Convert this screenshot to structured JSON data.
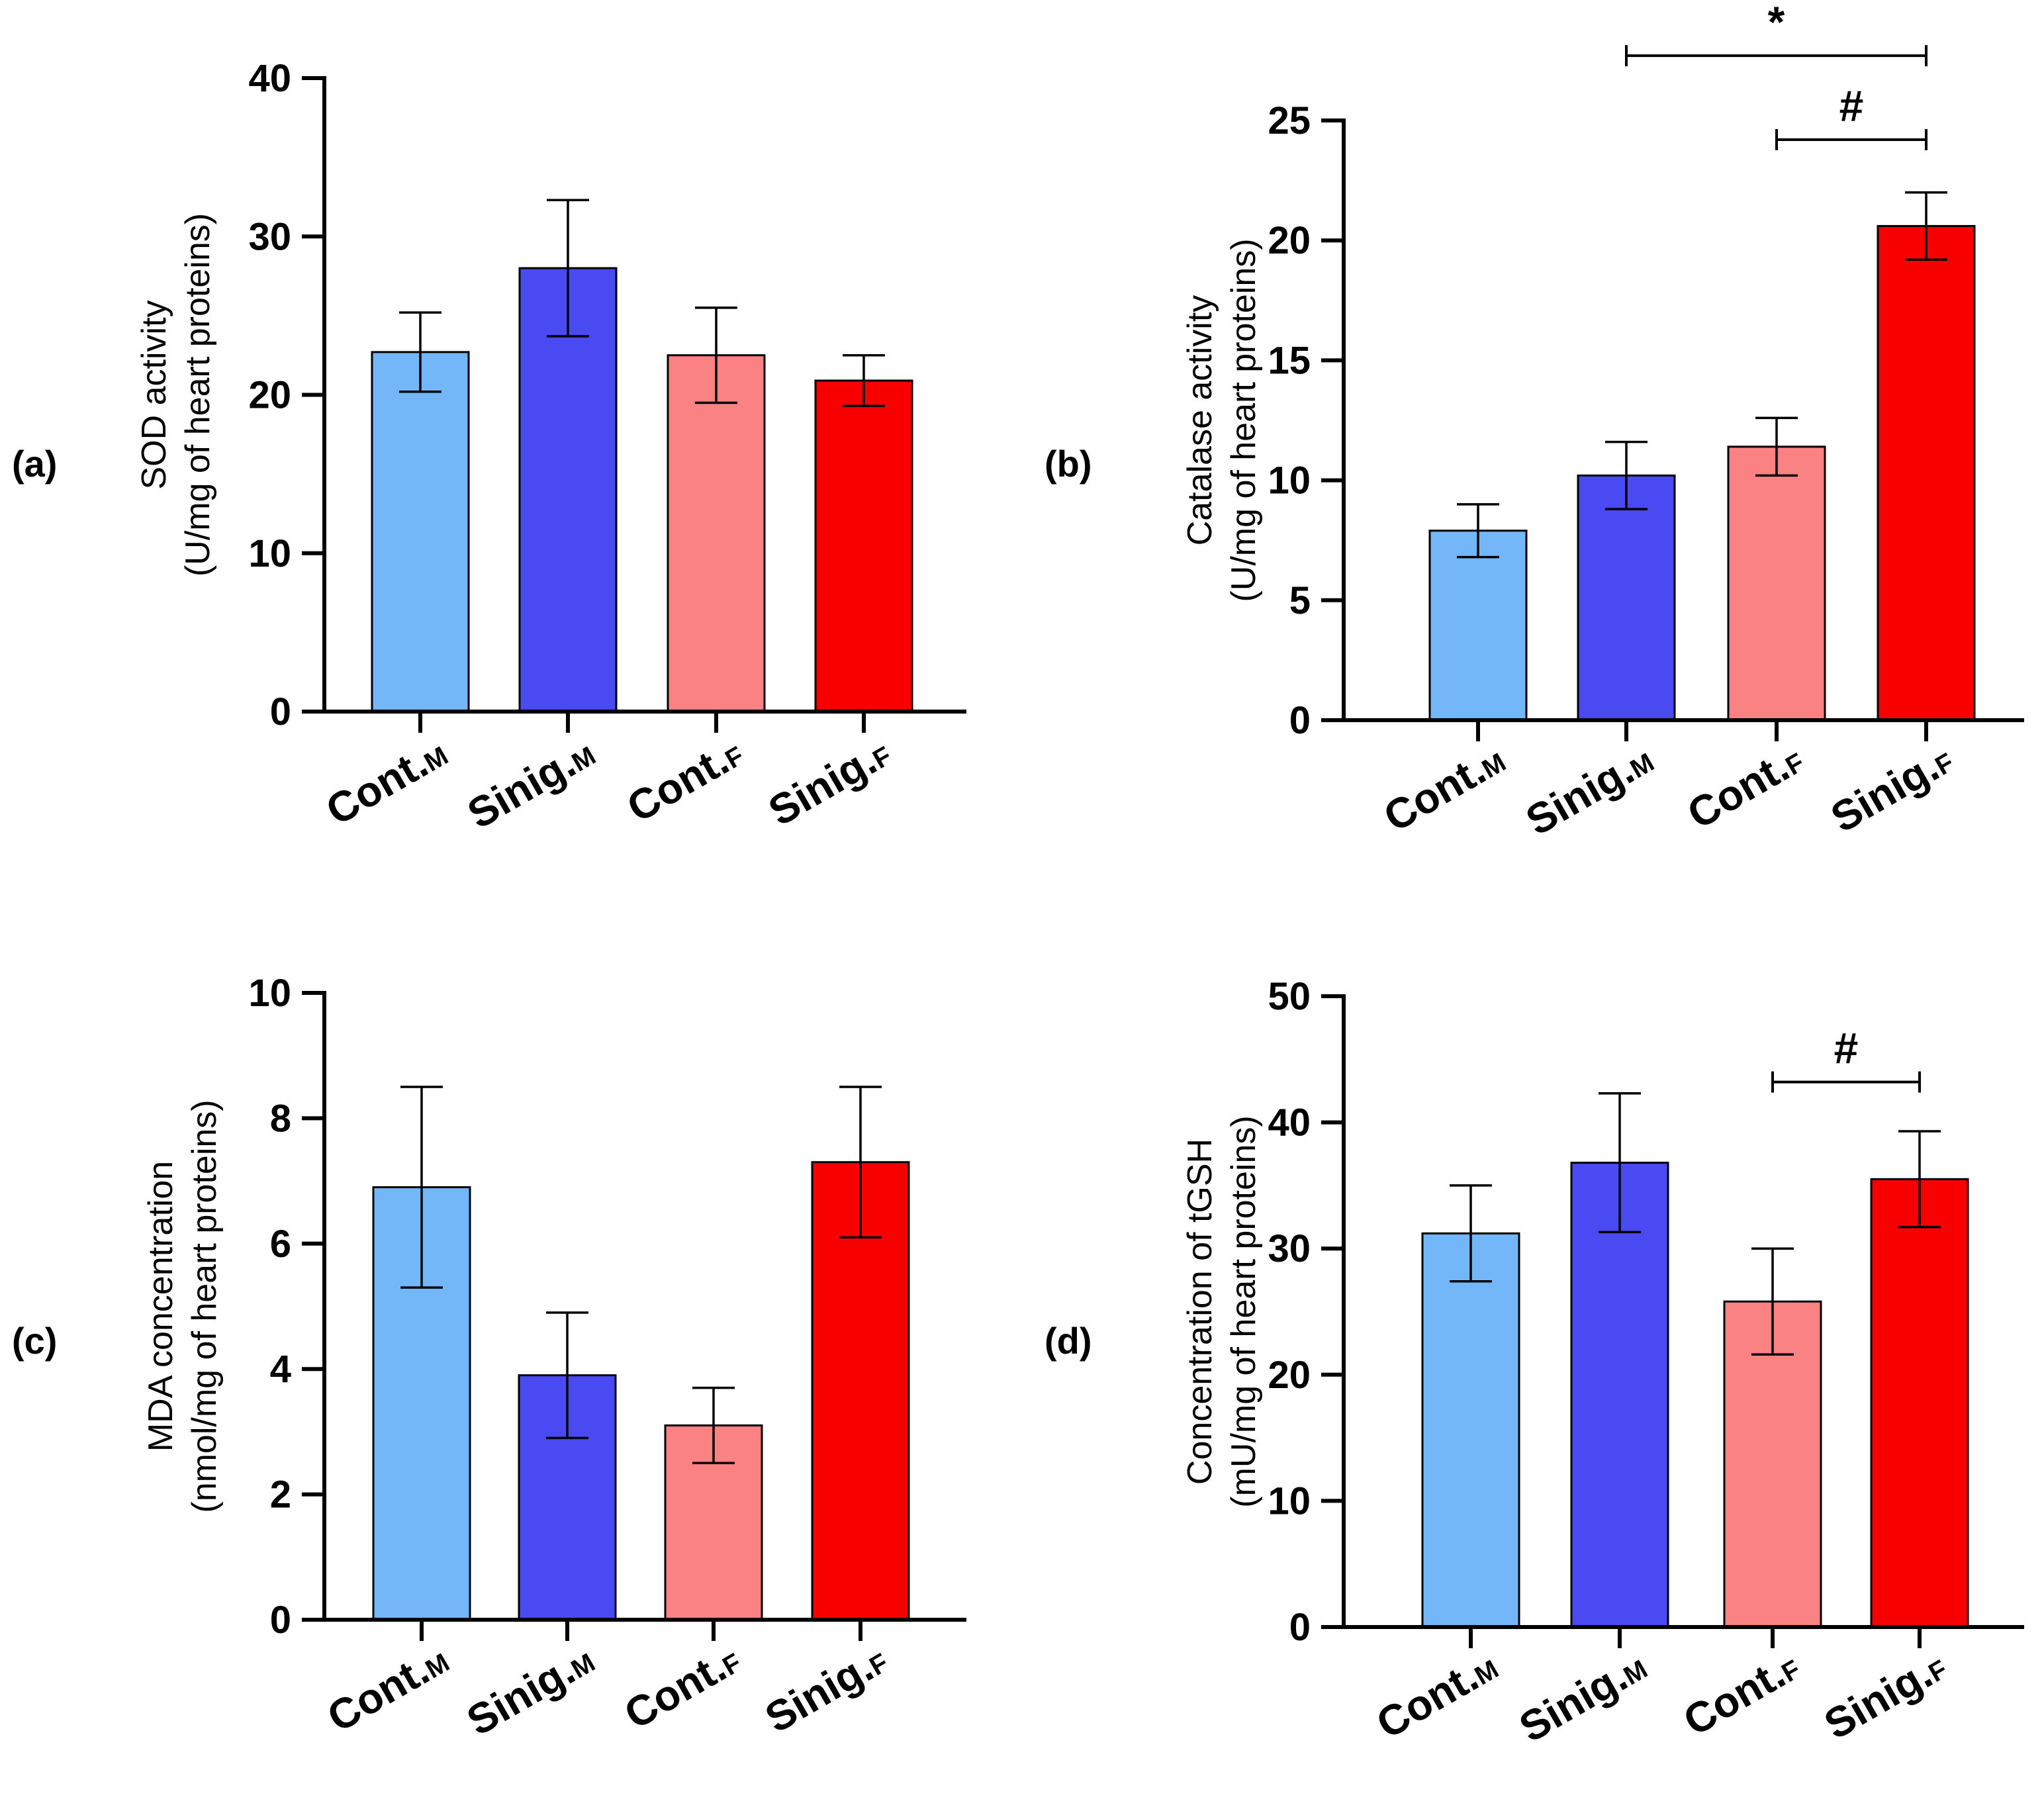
{
  "figure": {
    "colors": {
      "Cont.M": "#74b7f9",
      "Sinig.M": "#4a4af2",
      "Cont.F": "#fb8282",
      "Sinig.F": "#f80000",
      "axis": "#000000"
    }
  },
  "chart_data": [
    {
      "panel": "(a)",
      "type": "bar",
      "categories": [
        {
          "main": "Cont.",
          "sub": "M"
        },
        {
          "main": "Sinig.",
          "sub": "M"
        },
        {
          "main": "Cont.",
          "sub": "F"
        },
        {
          "main": "Sinig.",
          "sub": "F"
        }
      ],
      "values": [
        22.7,
        28.0,
        22.5,
        20.9
      ],
      "errors": [
        2.5,
        4.3,
        3.0,
        1.6
      ],
      "ylabel_line1": "SOD activity",
      "ylabel_line2": "(U/mg of heart proteins)",
      "ylim": [
        0,
        40
      ],
      "yticks": [
        0,
        10,
        20,
        30,
        40
      ],
      "significance": []
    },
    {
      "panel": "(b)",
      "type": "bar",
      "categories": [
        {
          "main": "Cont.",
          "sub": "M"
        },
        {
          "main": "Sinig.",
          "sub": "M"
        },
        {
          "main": "Cont.",
          "sub": "F"
        },
        {
          "main": "Sinig.",
          "sub": "F"
        }
      ],
      "values": [
        7.9,
        10.2,
        11.4,
        20.6
      ],
      "errors": [
        1.1,
        1.4,
        1.2,
        1.4
      ],
      "ylabel_line1": "Catalase activity",
      "ylabel_line2": "(U/mg of heart proteins)",
      "ylim": [
        0,
        25
      ],
      "yticks": [
        0,
        5,
        10,
        15,
        20,
        25
      ],
      "significance": [
        {
          "from": 1,
          "to": 3,
          "symbol": "*",
          "y": 27.7
        },
        {
          "from": 2,
          "to": 3,
          "symbol": "#",
          "y": 24.2
        }
      ]
    },
    {
      "panel": "(c)",
      "type": "bar",
      "categories": [
        {
          "main": "Cont.",
          "sub": "M"
        },
        {
          "main": "Sinig.",
          "sub": "M"
        },
        {
          "main": "Cont.",
          "sub": "F"
        },
        {
          "main": "Sinig.",
          "sub": "F"
        }
      ],
      "values": [
        6.9,
        3.9,
        3.1,
        7.3
      ],
      "errors": [
        1.6,
        1.0,
        0.6,
        1.2
      ],
      "ylabel_line1": "MDA concentration",
      "ylabel_line2": "(nmol/mg of heart proteins)",
      "ylim": [
        0,
        10
      ],
      "yticks": [
        0,
        2,
        4,
        6,
        8,
        10
      ],
      "significance": []
    },
    {
      "panel": "(d)",
      "type": "bar",
      "categories": [
        {
          "main": "Cont.",
          "sub": "M"
        },
        {
          "main": "Sinig.",
          "sub": "M"
        },
        {
          "main": "Cont.",
          "sub": "F"
        },
        {
          "main": "Sinig.",
          "sub": "F"
        }
      ],
      "values": [
        31.2,
        36.8,
        25.8,
        35.5
      ],
      "errors": [
        3.8,
        5.5,
        4.2,
        3.8
      ],
      "ylabel_line1": "Concentration of tGSH",
      "ylabel_line2": "(mU/mg of heart proteins)",
      "ylim": [
        0,
        50
      ],
      "yticks": [
        0,
        10,
        20,
        30,
        40,
        50
      ],
      "significance": [
        {
          "from": 2,
          "to": 3,
          "symbol": "#",
          "y": 43.2
        }
      ]
    }
  ]
}
